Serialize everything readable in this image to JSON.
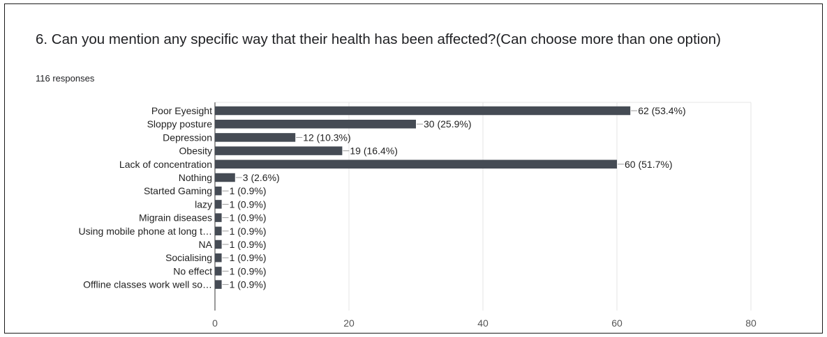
{
  "question": {
    "title": "6. Can you mention any specific way that their health has been affected?(Can choose more than one option)",
    "responses": "116 responses"
  },
  "colors": {
    "bar": "#454b54",
    "grid": "#e6e6e6",
    "leader": "#9a9a9a"
  },
  "chart_data": {
    "type": "bar",
    "orientation": "horizontal",
    "categories": [
      "Poor Eyesight",
      "Sloppy posture",
      "Depression",
      "Obesity",
      "Lack of concentration",
      "Nothing",
      "Started Gaming",
      "lazy",
      "Migrain diseases",
      "Using mobile phone at long t…",
      "NA",
      "Socialising",
      "No effect",
      "Offline classes work well so…"
    ],
    "values": [
      62,
      30,
      12,
      19,
      60,
      3,
      1,
      1,
      1,
      1,
      1,
      1,
      1,
      1
    ],
    "data_labels": [
      "62 (53.4%)",
      "30 (25.9%)",
      "12 (10.3%)",
      "19 (16.4%)",
      "60 (51.7%)",
      "3 (2.6%)",
      "1 (0.9%)",
      "1 (0.9%)",
      "1 (0.9%)",
      "1 (0.9%)",
      "1 (0.9%)",
      "1 (0.9%)",
      "1 (0.9%)",
      "1 (0.9%)"
    ],
    "xlim": [
      0,
      80
    ],
    "xticks": [
      0,
      20,
      40,
      60,
      80
    ],
    "grid": true
  }
}
